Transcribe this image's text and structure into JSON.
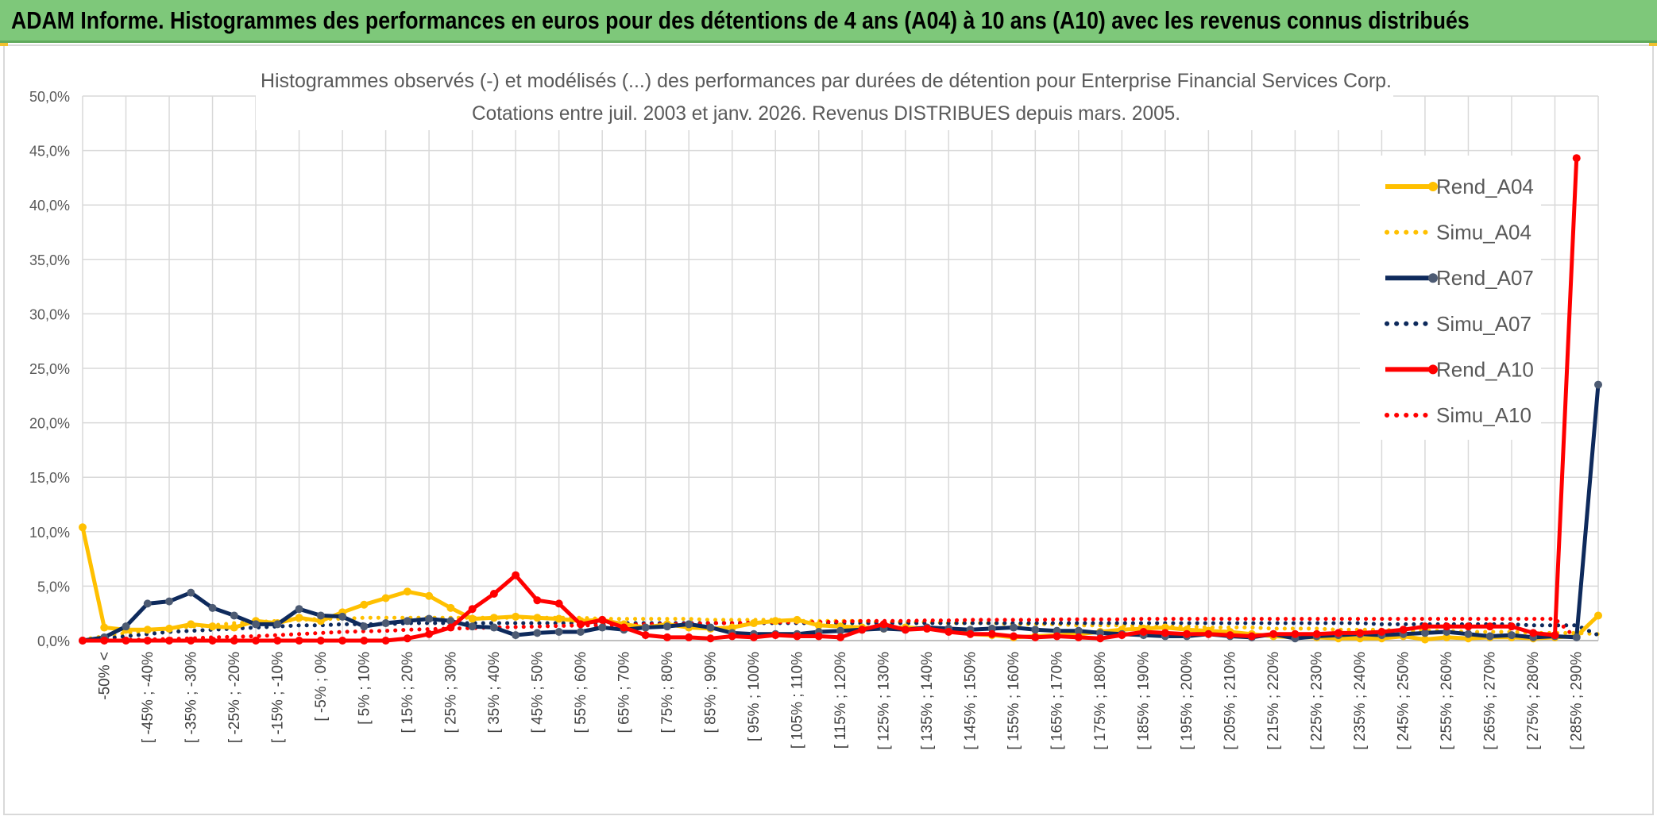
{
  "header": {
    "title": "ADAM Informe. Histogrammes des performances en euros pour des détentions de 4 ans (A04) à 10 ans (A10) avec les revenus connus distribués"
  },
  "colors": {
    "header_bg": "#7ec87a",
    "a04": "#ffc000",
    "a07": "#0e2a5c",
    "a07_marker": "#4d5b73",
    "a10": "#ff0000",
    "grid": "#d9d9d9"
  },
  "chart_data": {
    "type": "line",
    "title": "Histogrammes observés (-) et modélisés (...) des performances par durées de détention pour Enterprise Financial Services Corp.",
    "subtitle": "Cotations entre juil. 2003 et janv. 2026. Revenus DISTRIBUES depuis mars. 2005.",
    "ylim": [
      0,
      50
    ],
    "yticks": [
      "0,0%",
      "5,0%",
      "10,0%",
      "15,0%",
      "20,0%",
      "25,0%",
      "30,0%",
      "35,0%",
      "40,0%",
      "45,0%",
      "50,0%"
    ],
    "grid": true,
    "legend_position": "right",
    "x_labels": [
      "-50% <",
      "[ -45% ; -40%",
      "[ -35% ; -30%",
      "[ -25% ; -20%",
      "[ -15% ; -10%",
      "[ -5% ; 0%",
      "[ 5% ; 10%",
      "[ 15% ; 20%",
      "[ 25% ; 30%",
      "[ 35% ; 40%",
      "[ 45% ; 50%",
      "[ 55% ; 60%",
      "[ 65% ; 70%",
      "[ 75% ; 80%",
      "[ 85% ; 90%",
      "[ 95% ; 100%",
      "[ 105% ; 110%",
      "[ 115% ; 120%",
      "[ 125% ; 130%",
      "[ 135% ; 140%",
      "[ 145% ; 150%",
      "[ 155% ; 160%",
      "[ 165% ; 170%",
      "[ 175% ; 180%",
      "[ 185% ; 190%",
      "[ 195% ; 200%",
      "[ 205% ; 210%",
      "[ 215% ; 220%",
      "[ 225% ; 230%",
      "[ 235% ; 240%",
      "[ 245% ; 250%",
      "[ 255% ; 260%",
      "[ 265% ; 270%",
      "[ 275% ; 280%",
      "[ 285% ; 290%"
    ],
    "series": [
      {
        "name": "Rend_A04",
        "style": "solid",
        "color": "#ffc000",
        "values": [
          10.4,
          1.2,
          1.0,
          1.0,
          1.1,
          1.5,
          1.3,
          1.2,
          1.8,
          1.6,
          2.1,
          1.8,
          2.6,
          3.3,
          3.9,
          4.5,
          4.1,
          3.0,
          2.0,
          2.1,
          2.2,
          2.1,
          2.0,
          1.8,
          1.9,
          1.5,
          1.2,
          1.5,
          1.2,
          1.1,
          1.2,
          1.6,
          1.8,
          1.9,
          1.4,
          1.3,
          1.2,
          1.1,
          1.2,
          1.1,
          1.0,
          0.6,
          0.5,
          0.3,
          0.4,
          0.5,
          0.6,
          0.8,
          1.0,
          1.1,
          1.2,
          1.0,
          0.9,
          0.8,
          0.6,
          0.4,
          0.3,
          0.3,
          0.2,
          0.2,
          0.2,
          0.4,
          0.1,
          0.3,
          0.2,
          0.3,
          0.3,
          0.2,
          0.3,
          0.4,
          2.3
        ]
      },
      {
        "name": "Simu_A04",
        "style": "dotted",
        "color": "#ffc000",
        "values": [
          0.1,
          0.4,
          0.7,
          0.9,
          1.1,
          1.3,
          1.4,
          1.6,
          1.7,
          1.8,
          1.9,
          2.0,
          2.0,
          2.1,
          2.1,
          2.1,
          2.1,
          2.1,
          2.1,
          2.1,
          2.1,
          2.1,
          2.1,
          2.1,
          2.0,
          2.0,
          2.0,
          2.0,
          2.0,
          1.9,
          1.9,
          1.9,
          1.9,
          1.8,
          1.8,
          1.8,
          1.8,
          1.7,
          1.7,
          1.7,
          1.6,
          1.6,
          1.6,
          1.5,
          1.5,
          1.5,
          1.4,
          1.4,
          1.4,
          1.3,
          1.3,
          1.3,
          1.2,
          1.2,
          1.2,
          1.1,
          1.1,
          1.1,
          1.0,
          1.0,
          1.0,
          0.9,
          0.9,
          0.9,
          0.8,
          0.8,
          0.8,
          0.7,
          0.7,
          0.7,
          0.6
        ]
      },
      {
        "name": "Rend_A07",
        "style": "solid",
        "color": "#0e2a5c",
        "values": [
          0.0,
          0.3,
          1.3,
          3.4,
          3.6,
          4.4,
          3.0,
          2.3,
          1.5,
          1.5,
          2.9,
          2.3,
          2.2,
          1.3,
          1.6,
          1.8,
          2.0,
          1.8,
          1.3,
          1.2,
          0.5,
          0.7,
          0.8,
          0.8,
          1.2,
          1.0,
          1.2,
          1.3,
          1.5,
          1.2,
          0.7,
          0.6,
          0.6,
          0.6,
          0.8,
          0.9,
          1.0,
          1.1,
          1.0,
          1.2,
          1.1,
          1.0,
          1.1,
          1.2,
          1.0,
          0.9,
          0.9,
          0.7,
          0.6,
          0.5,
          0.4,
          0.4,
          0.6,
          0.4,
          0.3,
          0.6,
          0.2,
          0.4,
          0.5,
          0.6,
          0.5,
          0.6,
          0.7,
          0.8,
          0.6,
          0.4,
          0.5,
          0.3,
          0.4,
          0.3,
          23.5
        ]
      },
      {
        "name": "Simu_A07",
        "style": "dotted",
        "color": "#0e2a5c",
        "values": [
          0.05,
          0.2,
          0.4,
          0.6,
          0.8,
          0.9,
          1.0,
          1.1,
          1.2,
          1.3,
          1.4,
          1.4,
          1.5,
          1.5,
          1.5,
          1.6,
          1.6,
          1.6,
          1.6,
          1.6,
          1.6,
          1.6,
          1.6,
          1.6,
          1.6,
          1.6,
          1.6,
          1.6,
          1.6,
          1.6,
          1.6,
          1.6,
          1.6,
          1.6,
          1.6,
          1.6,
          1.6,
          1.6,
          1.6,
          1.6,
          1.6,
          1.6,
          1.6,
          1.6,
          1.6,
          1.6,
          1.6,
          1.6,
          1.6,
          1.6,
          1.6,
          1.6,
          1.6,
          1.6,
          1.6,
          1.6,
          1.6,
          1.6,
          1.6,
          1.6,
          1.5,
          1.5,
          1.5,
          1.5,
          1.5,
          1.5,
          1.5,
          1.4,
          1.4,
          1.4,
          0.5
        ]
      },
      {
        "name": "Rend_A10",
        "style": "solid",
        "color": "#ff0000",
        "values": [
          0.0,
          0.0,
          0.0,
          0.0,
          0.0,
          0.0,
          0.0,
          0.0,
          0.0,
          0.0,
          0.0,
          0.0,
          0.0,
          0.0,
          0.0,
          0.2,
          0.6,
          1.2,
          2.9,
          4.3,
          6.0,
          3.7,
          3.4,
          1.5,
          1.9,
          1.2,
          0.5,
          0.3,
          0.3,
          0.2,
          0.4,
          0.3,
          0.5,
          0.4,
          0.4,
          0.3,
          1.0,
          1.5,
          1.0,
          1.1,
          0.8,
          0.6,
          0.6,
          0.4,
          0.3,
          0.4,
          0.3,
          0.2,
          0.5,
          0.8,
          0.7,
          0.6,
          0.6,
          0.5,
          0.4,
          0.6,
          0.6,
          0.6,
          0.7,
          0.7,
          0.8,
          1.0,
          1.3,
          1.3,
          1.3,
          1.3,
          1.3,
          0.7,
          0.5,
          44.3
        ]
      },
      {
        "name": "Simu_A10",
        "style": "dotted",
        "color": "#ff0000",
        "values": [
          0.0,
          0.0,
          0.05,
          0.1,
          0.15,
          0.2,
          0.3,
          0.35,
          0.4,
          0.5,
          0.6,
          0.7,
          0.8,
          0.85,
          0.9,
          1.0,
          1.05,
          1.1,
          1.15,
          1.2,
          1.25,
          1.3,
          1.35,
          1.4,
          1.4,
          1.45,
          1.5,
          1.5,
          1.55,
          1.6,
          1.6,
          1.65,
          1.7,
          1.7,
          1.7,
          1.75,
          1.8,
          1.8,
          1.8,
          1.85,
          1.85,
          1.9,
          1.9,
          1.9,
          1.9,
          1.95,
          1.95,
          1.95,
          1.95,
          2.0,
          2.0,
          2.0,
          2.0,
          2.0,
          2.0,
          2.0,
          2.0,
          2.0,
          2.0,
          2.0,
          2.0,
          2.0,
          2.0,
          2.0,
          2.0,
          2.0,
          2.0,
          2.0,
          2.0,
          0.2
        ]
      }
    ]
  }
}
